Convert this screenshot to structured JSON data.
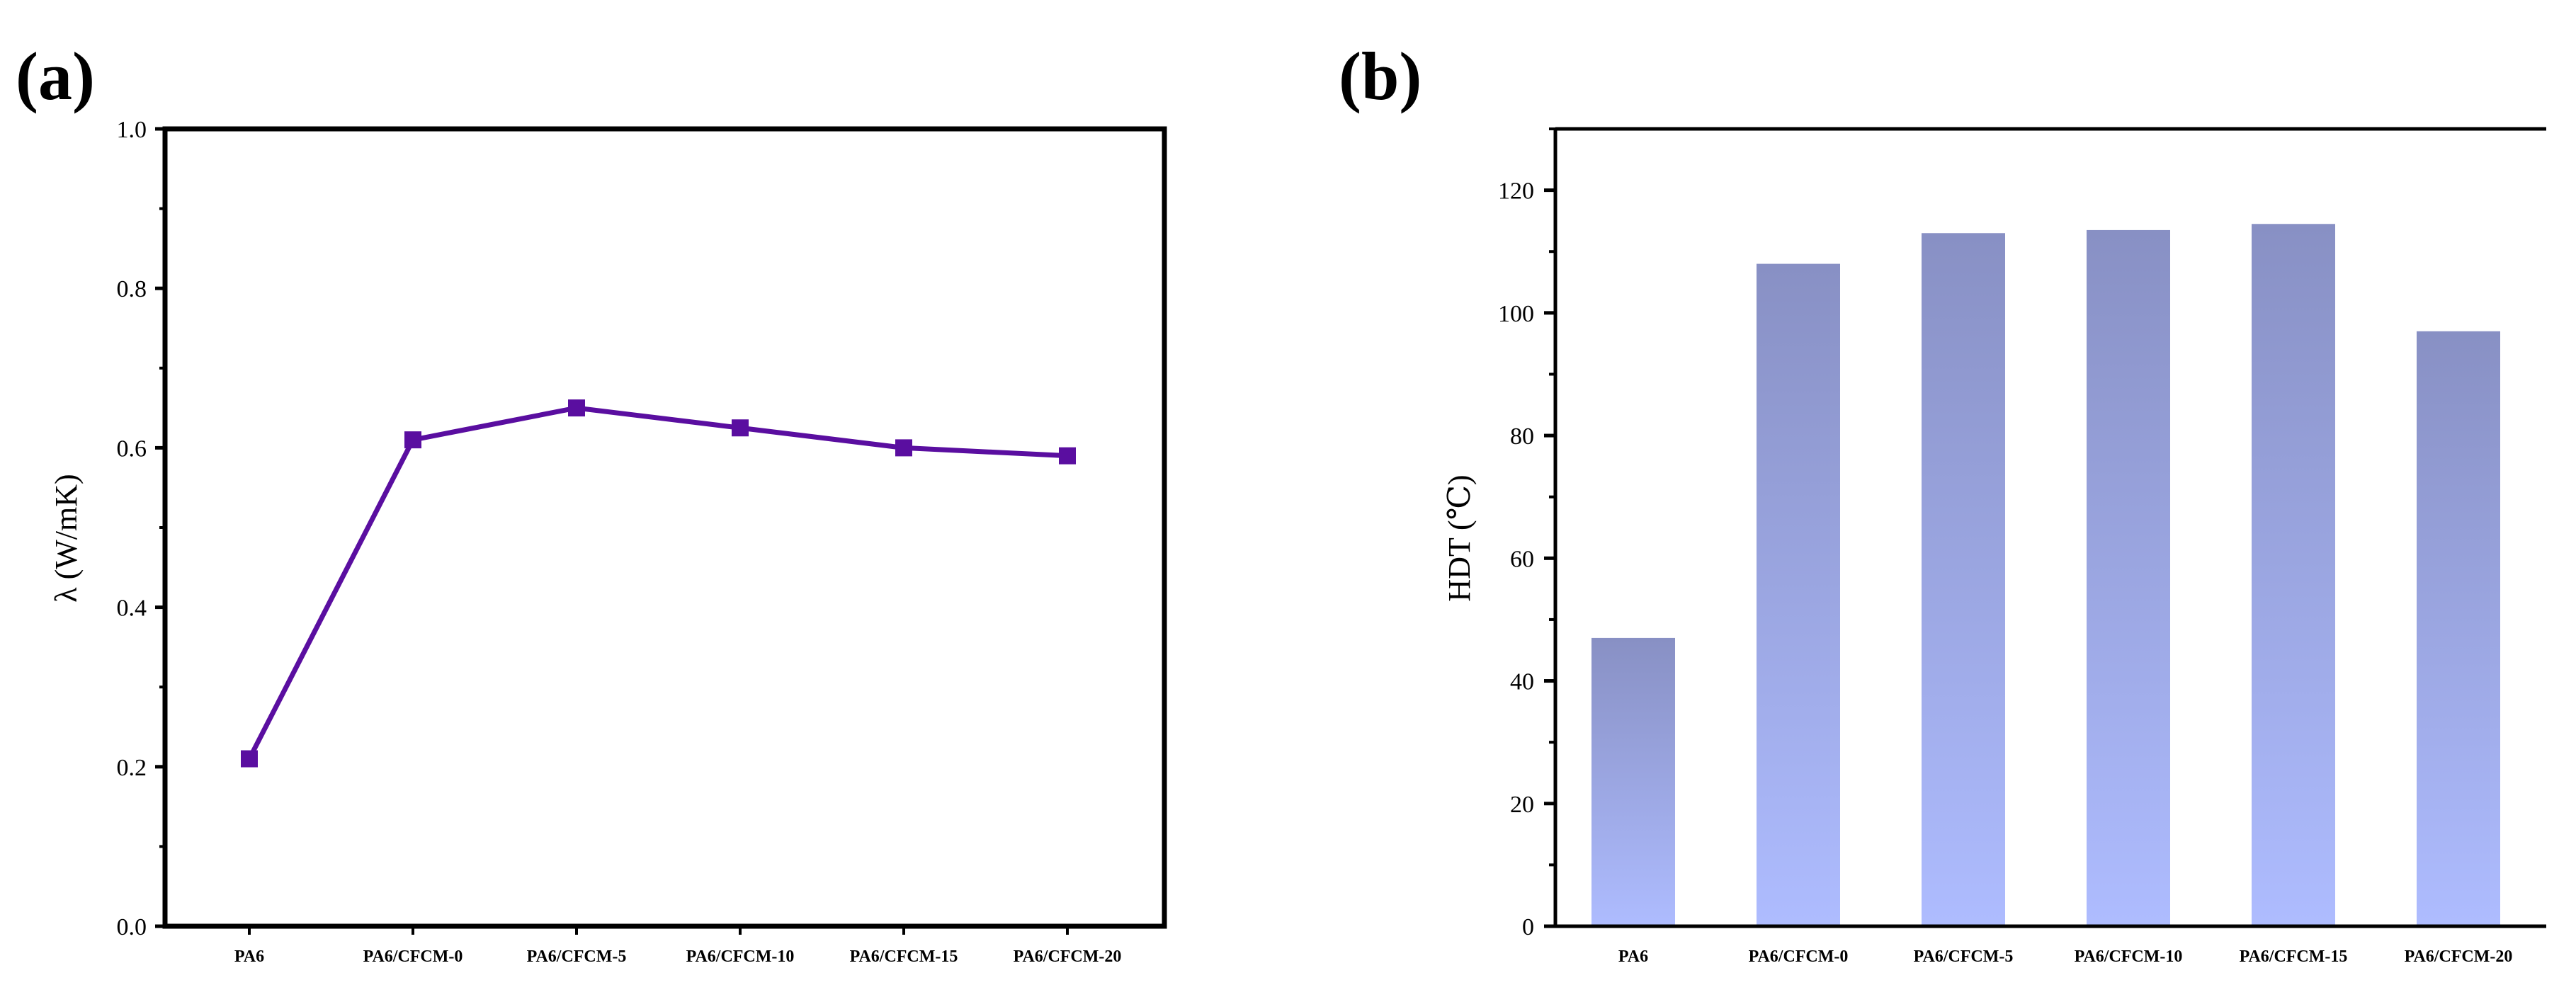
{
  "chart_data": [
    {
      "panel_label": "(a)",
      "type": "line",
      "categories": [
        "PA6",
        "PA6/CFCM-0",
        "PA6/CFCM-5",
        "PA6/CFCM-10",
        "PA6/CFCM-15",
        "PA6/CFCM-20"
      ],
      "values": [
        0.21,
        0.61,
        0.65,
        0.625,
        0.6,
        0.59
      ],
      "ylabel": "λ (W/mK)",
      "xlabel": "",
      "ylim": [
        0.0,
        1.0
      ],
      "yticks": [
        0.0,
        0.2,
        0.4,
        0.6,
        0.8,
        1.0
      ],
      "ytick_labels": [
        "0.0",
        "0.2",
        "0.4",
        "0.6",
        "0.8",
        "1.0"
      ],
      "series_color": "#5a0ea0",
      "marker": "square"
    },
    {
      "panel_label": "(b)",
      "type": "bar",
      "categories": [
        "PA6",
        "PA6/CFCM-0",
        "PA6/CFCM-5",
        "PA6/CFCM-10",
        "PA6/CFCM-15",
        "PA6/CFCM-20"
      ],
      "values": [
        47,
        108,
        113,
        113.5,
        114.5,
        97
      ],
      "ylabel": "HDT (℃)",
      "xlabel": "",
      "ylim": [
        0,
        130
      ],
      "yticks": [
        0,
        20,
        40,
        60,
        80,
        100,
        120
      ],
      "ytick_labels": [
        "0",
        "20",
        "40",
        "60",
        "80",
        "100",
        "120"
      ],
      "bar_color_top": "#8890c4",
      "bar_color_bottom": "#aebcff"
    }
  ]
}
